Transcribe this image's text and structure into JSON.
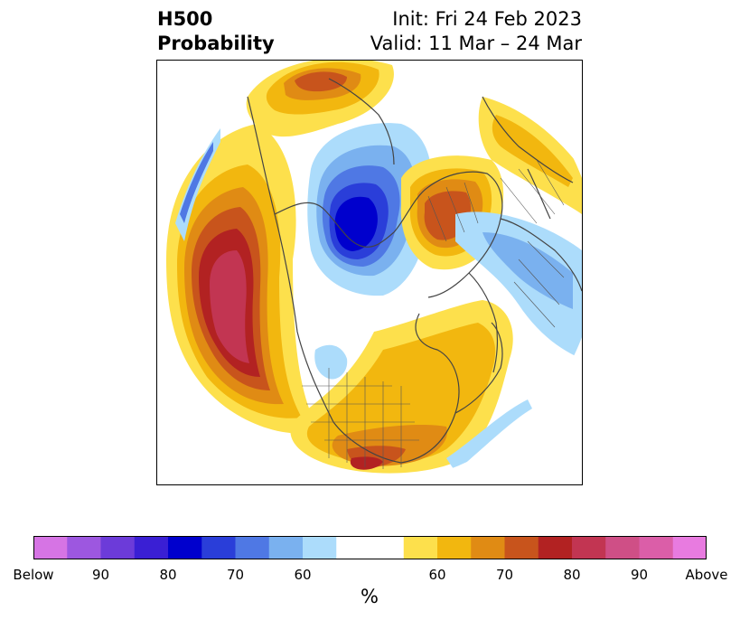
{
  "title": {
    "left_line1": "H500",
    "left_line2": "Probability",
    "init": "Init: Fri 24 Feb 2023",
    "valid": "Valid: 11 Mar – 24 Mar"
  },
  "colorbar": {
    "unit": "%",
    "colors": [
      "#d674e4",
      "#9d57e0",
      "#6c3bd9",
      "#3a1fd4",
      "#0000cd",
      "#2a3ed9",
      "#4f78e4",
      "#7ab1ef",
      "#acdcfb",
      "#ffffff",
      "#ffffff",
      "#fde04c",
      "#f2b70f",
      "#e08b14",
      "#c8541c",
      "#b22222",
      "#c23552",
      "#cf4f86",
      "#db5ea8",
      "#e87be0"
    ],
    "tick_labels": [
      "Below",
      "90",
      "80",
      "70",
      "60",
      "60",
      "70",
      "80",
      "90",
      "Above"
    ]
  },
  "map": {
    "projection": "north-polar-stereographic",
    "features": [
      "coastlines",
      "country-borders",
      "state-borders"
    ],
    "anomaly_regions": [
      {
        "name": "central-north-pacific-ridge",
        "sign": "above",
        "peak": "90"
      },
      {
        "name": "greenland-arctic-trough",
        "sign": "below",
        "peak": "80"
      },
      {
        "name": "scandinavia-ridge",
        "sign": "above",
        "peak": "70"
      },
      {
        "name": "southeast-us-ridge",
        "sign": "above",
        "peak": "80"
      },
      {
        "name": "western-europe-trough",
        "sign": "below",
        "peak": "60"
      }
    ]
  }
}
